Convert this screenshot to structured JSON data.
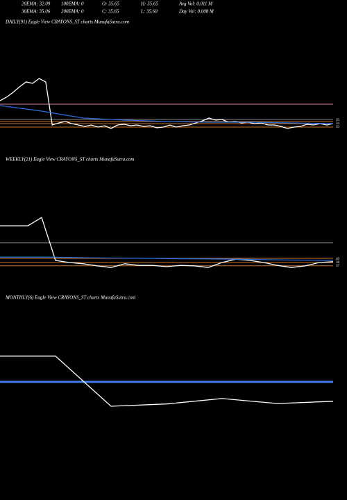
{
  "header": {
    "rows": [
      [
        "20EMA: 32.09",
        "100EMA: 0",
        "O: 35.65",
        "H: 35.65",
        "Avg Vol: 0.011 M"
      ],
      [
        "30EMA: 35.06",
        "200EMA: 0",
        "C: 35.65",
        "L: 35.60",
        "Day Vol: 0.008 M"
      ]
    ]
  },
  "chart_data": [
    {
      "type": "line",
      "title": "DAILY(91) Eagle  View  CRAYONS_ST charts MunafaSutra.com",
      "ylim": [
        27,
        63
      ],
      "right_labels": [
        "35",
        "34",
        "33"
      ],
      "hlines": [
        {
          "value": 41,
          "color": "#e87fa0"
        },
        {
          "value": 36.6,
          "color": "#888888"
        },
        {
          "value": 36,
          "color": "#c8752a"
        },
        {
          "value": 35.4,
          "color": "#c8752a"
        },
        {
          "value": 34.4,
          "color": "#c8752a"
        }
      ],
      "series": [
        {
          "color": "#ffffff",
          "values": [
            42,
            43,
            44.4,
            46,
            47.4,
            47,
            48.4,
            47.4,
            35,
            35.6,
            36,
            35.4,
            35,
            34.6,
            35,
            34.4,
            34.8,
            34,
            35,
            35.2,
            34.8,
            35,
            34.6,
            34.8,
            34.2,
            34.4,
            35,
            34.4,
            34.8,
            35,
            35.6,
            36.2,
            37,
            36.4,
            36.6,
            35.8,
            36,
            35.6,
            35.8,
            35.4,
            35.6,
            35,
            35,
            34.6,
            34,
            34.4,
            34.6,
            35.2,
            35,
            35.4,
            35,
            35.4
          ]
        },
        {
          "color": "#2a6fe0",
          "values": [
            40.6,
            39,
            37,
            36.4,
            36,
            35.8,
            35.8,
            35.6,
            35.4
          ]
        }
      ]
    },
    {
      "type": "line",
      "title": "WEEKLY(21) Eagle  View  CRAYONS_ST charts MunafaSutra.com",
      "ylim": [
        27.5,
        57.5
      ],
      "right_labels": [
        "40",
        "38",
        "37"
      ],
      "hlines": [
        {
          "value": 39.2,
          "color": "#888888"
        },
        {
          "value": 35.5,
          "color": "#c8752a"
        },
        {
          "value": 34.5,
          "color": "#c8752a"
        },
        {
          "value": 33.7,
          "color": "#c8752a"
        }
      ],
      "series": [
        {
          "color": "#ffffff",
          "values": [
            43.3,
            43.3,
            43.3,
            45.3,
            35,
            34.5,
            34.2,
            33.7,
            33.3,
            34.2,
            33.8,
            33.8,
            33.5,
            33.8,
            33.7,
            33.3,
            34.5,
            35.3,
            35,
            34.5,
            33.8,
            33.3,
            33.7,
            34.5,
            34.7
          ]
        },
        {
          "color": "#2a6fe0",
          "values": [
            35.8,
            35.8,
            35.6,
            35.5,
            35.4,
            35.3,
            35.1,
            35
          ]
        }
      ]
    },
    {
      "type": "line",
      "title": "MONTHLY(6) Eagle  View  CRAYONS_ST charts MunafaSutra.com",
      "ylim": [
        16.5,
        56.5
      ],
      "hlines": [
        {
          "value": 39.6,
          "color": "#3d7ee8",
          "width": 3
        }
      ],
      "series": [
        {
          "color": "#ffffff",
          "values": [
            45.3,
            45.3,
            34.2,
            34.7,
            35.9,
            34.8,
            35.3
          ]
        }
      ]
    }
  ]
}
